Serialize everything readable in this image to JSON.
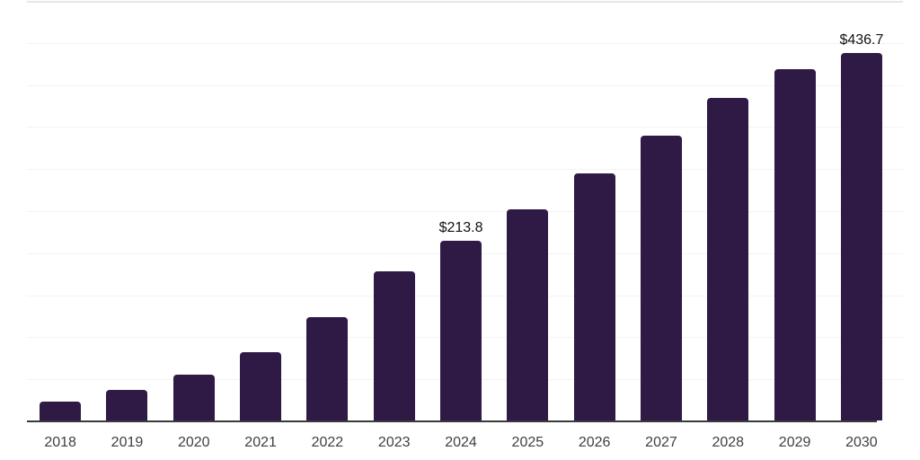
{
  "chart_data": {
    "type": "bar",
    "title": "",
    "xlabel": "",
    "ylabel": "",
    "categories": [
      "2018",
      "2019",
      "2020",
      "2021",
      "2022",
      "2023",
      "2024",
      "2025",
      "2026",
      "2027",
      "2028",
      "2029",
      "2030"
    ],
    "values": [
      22.3,
      35.9,
      54.2,
      81.4,
      123.0,
      177.4,
      213.8,
      251.1,
      293.7,
      338.6,
      383.4,
      418.2,
      436.7
    ],
    "labeled_points": [
      {
        "category": "2024",
        "label": "$213.8"
      },
      {
        "category": "2030",
        "label": "$436.7"
      }
    ],
    "ylim": [
      0,
      500
    ],
    "gridline_step": 50,
    "grid": true,
    "y_tick_labels_shown": false,
    "legend": false,
    "colors": {
      "bar": "#2F1945",
      "axis_line": "#3A3A3A",
      "gridline": "#F3F3F3",
      "top_gridline": "#E6E6E6",
      "tick_label": "#404040",
      "data_label": "#121212",
      "background": "#FFFFFF"
    }
  }
}
